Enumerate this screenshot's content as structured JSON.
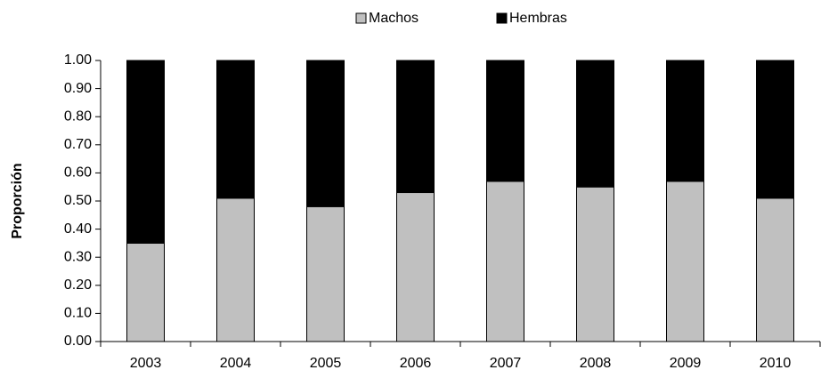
{
  "chart_data": {
    "type": "bar",
    "stacked": true,
    "y_label": "Proporción",
    "categories": [
      "2003",
      "2004",
      "2005",
      "2006",
      "2007",
      "2008",
      "2009",
      "2010"
    ],
    "series": [
      {
        "name": "Machos",
        "color": "#c0c0c0",
        "values": [
          0.35,
          0.51,
          0.48,
          0.53,
          0.57,
          0.55,
          0.57,
          0.51
        ]
      },
      {
        "name": "Hembras",
        "color": "#000000",
        "values": [
          0.65,
          0.49,
          0.52,
          0.47,
          0.43,
          0.45,
          0.43,
          0.49
        ]
      }
    ],
    "ylim": [
      0,
      1
    ],
    "yticks": [
      {
        "value": 0,
        "label": "0.00"
      },
      {
        "value": 0.1,
        "label": "0.10"
      },
      {
        "value": 0.2,
        "label": "0.20"
      },
      {
        "value": 0.3,
        "label": "0.30"
      },
      {
        "value": 0.4,
        "label": "0.40"
      },
      {
        "value": 0.5,
        "label": "0.50"
      },
      {
        "value": 0.6,
        "label": "0.60"
      },
      {
        "value": 0.7,
        "label": "0.70"
      },
      {
        "value": 0.8,
        "label": "0.80"
      },
      {
        "value": 0.9,
        "label": "0.90"
      },
      {
        "value": 1,
        "label": "1.00"
      }
    ],
    "legend": "top"
  }
}
